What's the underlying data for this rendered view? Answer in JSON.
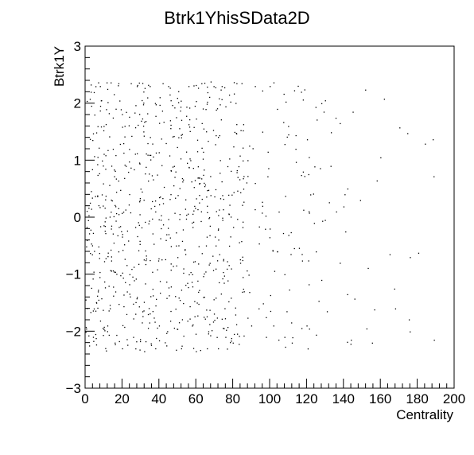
{
  "chart_data": {
    "type": "scatter",
    "title": "Btrk1YhisSData2D",
    "xlabel": "Centrality",
    "ylabel": "Btrk1Y",
    "xlim": [
      0,
      200
    ],
    "ylim": [
      -3,
      3
    ],
    "x_ticks": [
      "0",
      "20",
      "40",
      "60",
      "80",
      "100",
      "120",
      "140",
      "160",
      "180",
      "200"
    ],
    "y_ticks": [
      "−3",
      "−2",
      "−1",
      "0",
      "1",
      "2",
      "3"
    ],
    "grid": false,
    "legend": "none",
    "marker_color": "#000000",
    "points_sample": [
      [
        3,
        2.2
      ],
      [
        8,
        2.3
      ],
      [
        12,
        2.25
      ],
      [
        18,
        2.35
      ],
      [
        28,
        2.3
      ],
      [
        35,
        2.3
      ],
      [
        42,
        2.35
      ],
      [
        45,
        2.3
      ],
      [
        56,
        2.3
      ],
      [
        63,
        2.35
      ],
      [
        68,
        2.38
      ],
      [
        74,
        2.3
      ],
      [
        82,
        2.35
      ],
      [
        92,
        2.3
      ],
      [
        100,
        2.3
      ],
      [
        128,
        2.0
      ],
      [
        130,
        2.05
      ],
      [
        145,
        1.85
      ],
      [
        138,
        1.65
      ],
      [
        160,
        1.05
      ],
      [
        149,
        0.3
      ],
      [
        141,
        -0.25
      ],
      [
        165,
        -0.65
      ],
      [
        176,
        -0.7
      ],
      [
        168,
        -1.6
      ],
      [
        142,
        -1.35
      ],
      [
        131,
        -1.65
      ],
      [
        120,
        -1.9
      ],
      [
        144,
        -2.15
      ],
      [
        189,
        -2.15
      ],
      [
        5,
        1.8
      ],
      [
        10,
        1.6
      ],
      [
        15,
        1.2
      ],
      [
        22,
        0.9
      ],
      [
        30,
        0.5
      ],
      [
        38,
        0.1
      ],
      [
        44,
        -0.3
      ],
      [
        50,
        -0.7
      ],
      [
        58,
        -1.0
      ],
      [
        64,
        -1.4
      ],
      [
        70,
        -1.8
      ],
      [
        76,
        -2.1
      ],
      [
        80,
        -2.2
      ],
      [
        6,
        -1.5
      ],
      [
        12,
        -1.9
      ],
      [
        16,
        -2.2
      ],
      [
        20,
        -2.3
      ],
      [
        26,
        -2.1
      ],
      [
        32,
        -2.35
      ],
      [
        38,
        -2.3
      ],
      [
        44,
        -2.25
      ],
      [
        52,
        -2.3
      ],
      [
        60,
        -2.35
      ],
      [
        66,
        -2.3
      ],
      [
        72,
        -2.3
      ],
      [
        9,
        0.4
      ],
      [
        14,
        -0.2
      ],
      [
        18,
        -0.6
      ],
      [
        24,
        -1.0
      ],
      [
        28,
        -1.4
      ],
      [
        34,
        -1.7
      ],
      [
        40,
        -1.9
      ],
      [
        46,
        1.7
      ],
      [
        52,
        1.4
      ],
      [
        57,
        1.0
      ],
      [
        62,
        0.6
      ],
      [
        66,
        0.2
      ],
      [
        72,
        -0.2
      ],
      [
        78,
        -0.5
      ],
      [
        84,
        -0.8
      ],
      [
        88,
        1.0
      ],
      [
        92,
        0.6
      ],
      [
        96,
        0.2
      ],
      [
        100,
        -0.2
      ],
      [
        104,
        -0.6
      ],
      [
        108,
        -1.0
      ],
      [
        110,
        1.6
      ],
      [
        114,
        1.2
      ],
      [
        118,
        0.8
      ],
      [
        122,
        0.4
      ],
      [
        124,
        -0.1
      ],
      [
        117,
        2.2
      ],
      [
        104,
        1.9
      ],
      [
        96,
        1.5
      ],
      [
        86,
        -1.3
      ],
      [
        94,
        -1.6
      ],
      [
        102,
        -1.9
      ],
      [
        108,
        -2.1
      ],
      [
        112,
        -2.2
      ],
      [
        98,
        -2.1
      ],
      [
        90,
        -1.9
      ],
      [
        125,
        -0.6
      ],
      [
        128,
        -1.1
      ],
      [
        133,
        0.9
      ],
      [
        136,
        0.1
      ],
      [
        138,
        -0.8
      ]
    ]
  }
}
